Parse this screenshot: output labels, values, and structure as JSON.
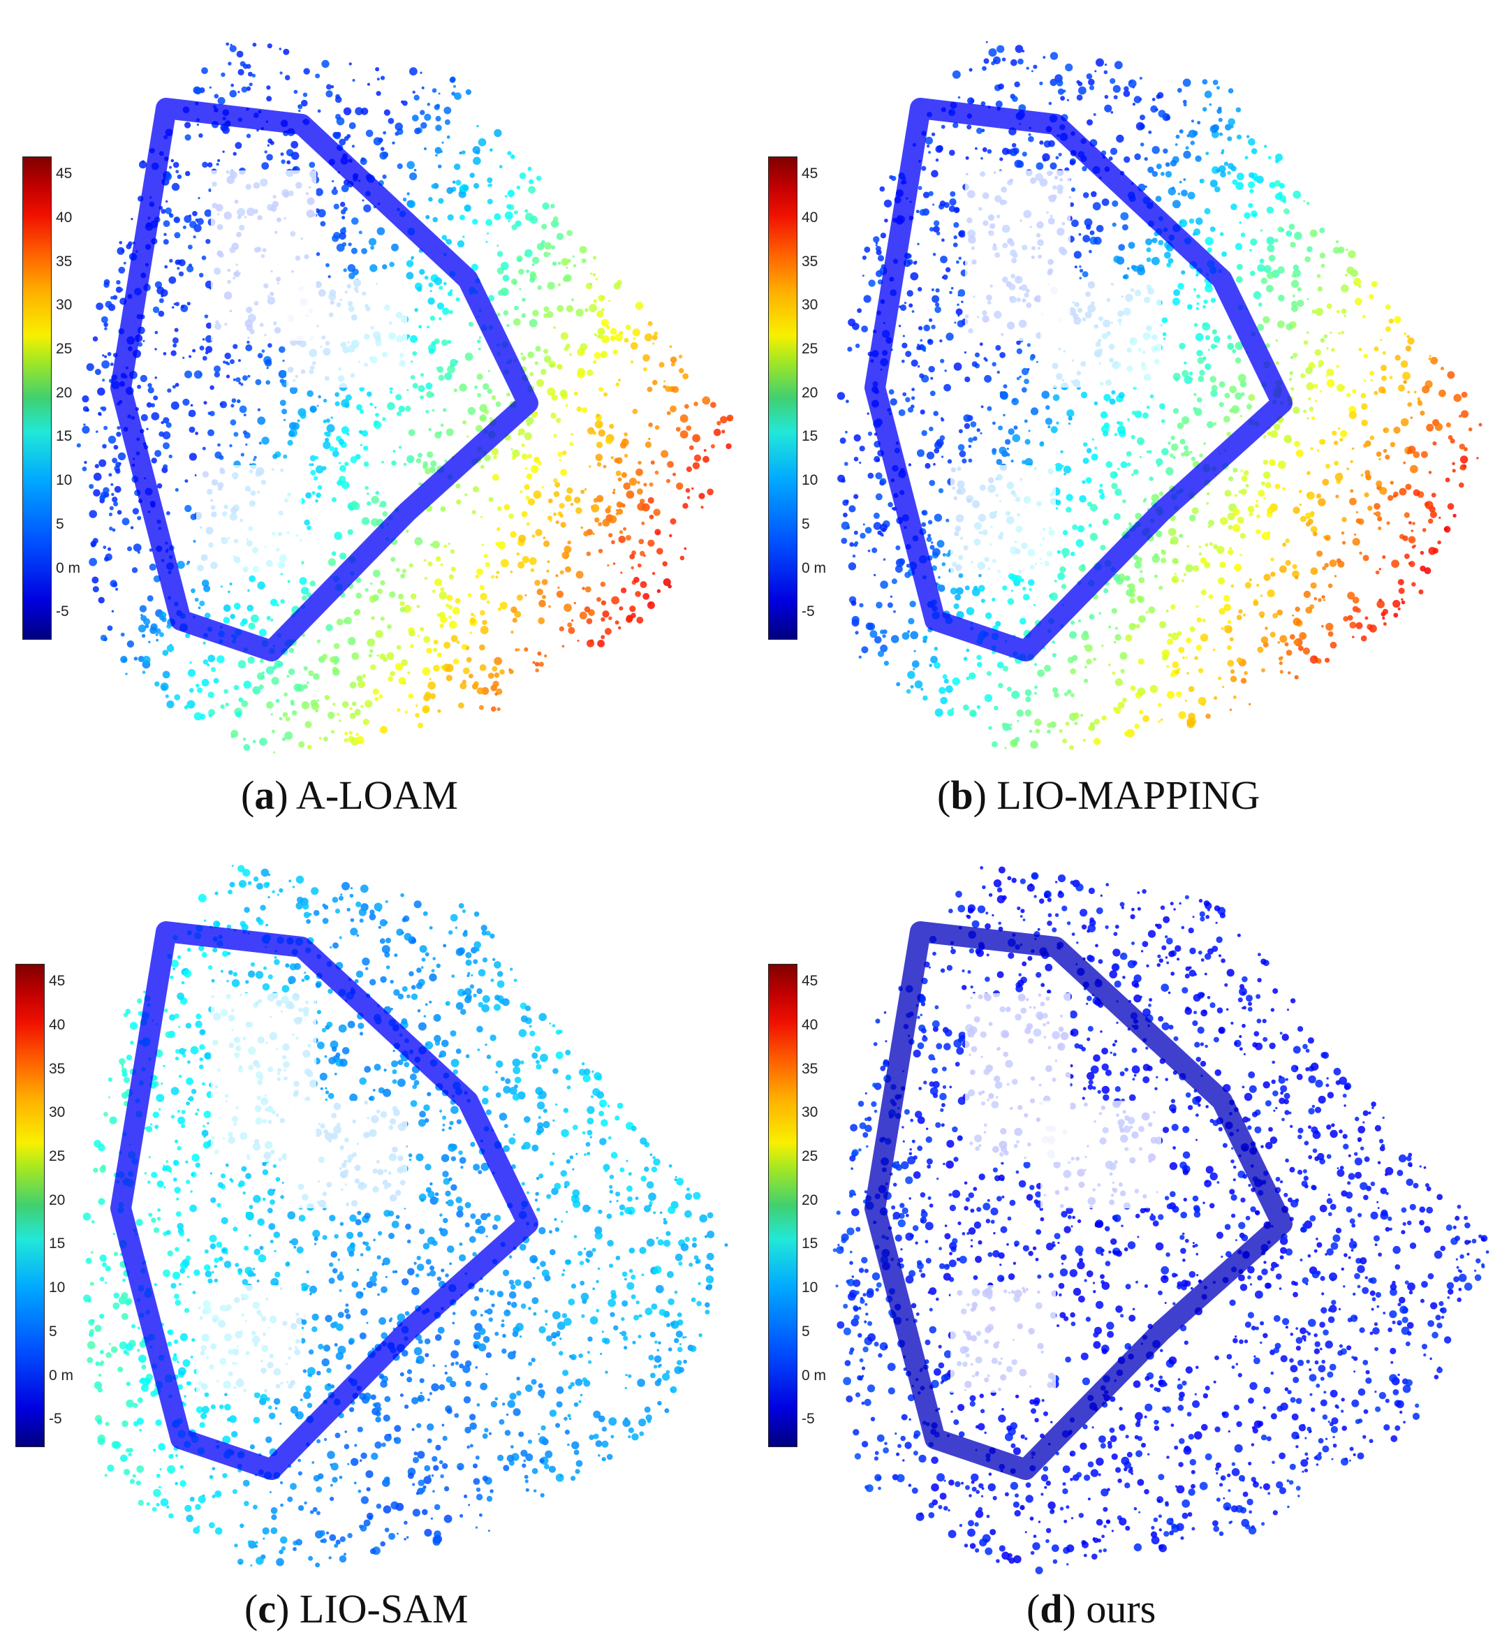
{
  "figure": {
    "panels": [
      {
        "id": "a",
        "letter": "a",
        "label": "A-LOAM",
        "scheme": "warm"
      },
      {
        "id": "b",
        "letter": "b",
        "label": "LIO-MAPPING",
        "scheme": "warm"
      },
      {
        "id": "c",
        "letter": "c",
        "label": "LIO-SAM",
        "scheme": "mid"
      },
      {
        "id": "d",
        "letter": "d",
        "label": "ours",
        "scheme": "cool"
      }
    ],
    "colorbar": {
      "ticks": [
        "45",
        "40",
        "35",
        "30",
        "25",
        "20",
        "15",
        "10",
        "5",
        "0 m",
        "-5"
      ],
      "values": [
        45,
        40,
        35,
        30,
        25,
        20,
        15,
        10,
        5,
        0,
        -5
      ],
      "range": [
        -8,
        47
      ],
      "colormap": "jet",
      "colors": [
        "#00007f",
        "#0000ff",
        "#00ffff",
        "#ffff00",
        "#ff0000",
        "#800000"
      ]
    }
  }
}
